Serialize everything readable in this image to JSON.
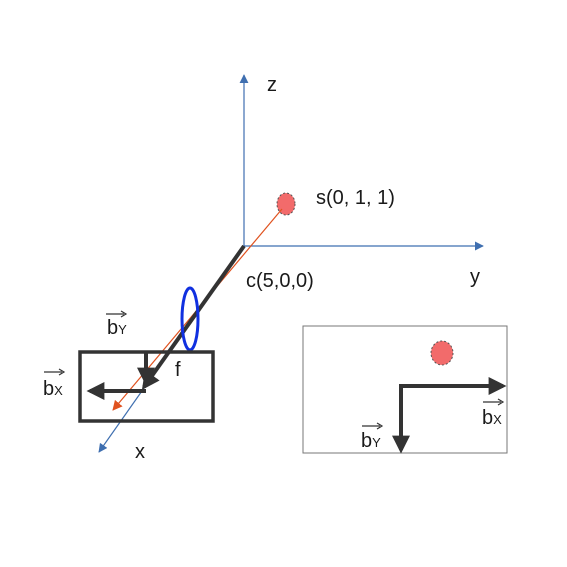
{
  "axes": {
    "z": "z",
    "y": "y",
    "x": "x"
  },
  "points": {
    "source": "s(0, 1, 1)",
    "camera": "c(5,0,0)",
    "focal": "f"
  },
  "vectors": {
    "bx_base": "b",
    "bx_sub": "X",
    "by_base": "b",
    "by_sub": "Y"
  },
  "colors": {
    "axis": "#3f6fb0",
    "ray": "#e0521f",
    "lens": "#1030e0",
    "source_fill": "#f26b6b",
    "frame": "#333333",
    "inset_border": "#777777"
  }
}
